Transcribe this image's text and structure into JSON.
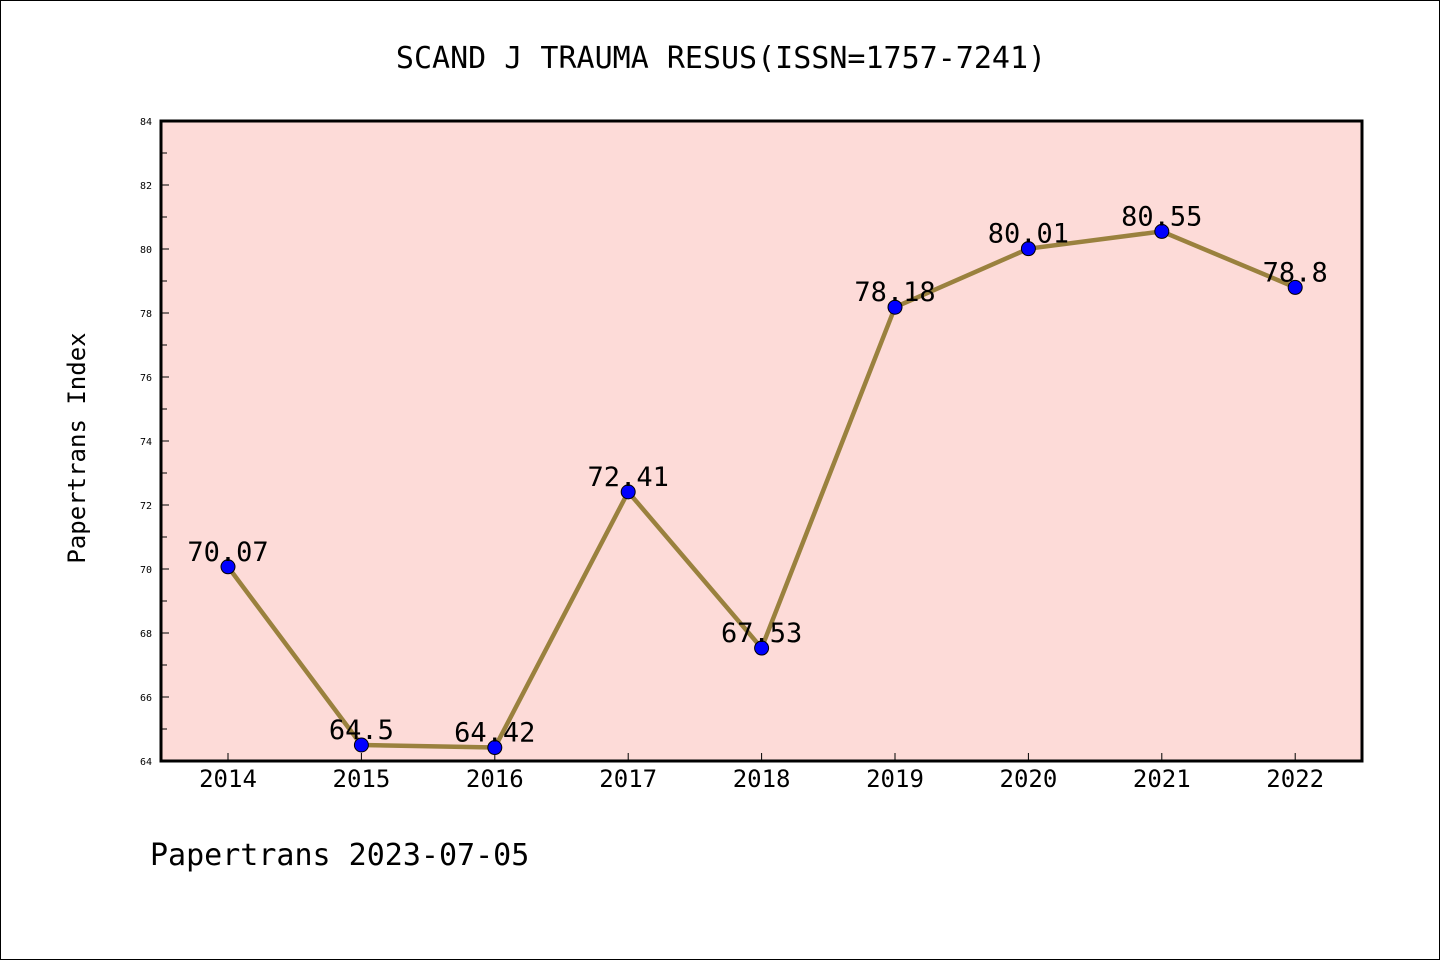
{
  "chart_data": {
    "type": "line",
    "title": "SCAND J TRAUMA RESUS(ISSN=1757-7241)",
    "xlabel": "",
    "ylabel": "Papertrans Index",
    "categories": [
      "2014",
      "2015",
      "2016",
      "2017",
      "2018",
      "2019",
      "2020",
      "2021",
      "2022"
    ],
    "series": [
      {
        "values": [
          70.07,
          64.5,
          64.42,
          72.41,
          67.53,
          78.18,
          80.01,
          80.55,
          78.8
        ]
      }
    ],
    "data_labels": [
      "70.07",
      "64.5",
      "64.42",
      "72.41",
      "67.53",
      "78.18",
      "80.01",
      "80.55",
      "78.8"
    ],
    "ylim": [
      64,
      84
    ],
    "yticks": [
      64,
      66,
      68,
      70,
      72,
      74,
      76,
      78,
      80,
      82,
      84
    ],
    "grid": false,
    "colors": {
      "plot_background": "#fddbd8",
      "line": "#9a813e",
      "marker": "#0000ff"
    }
  },
  "footer": "Papertrans 2023-07-05"
}
